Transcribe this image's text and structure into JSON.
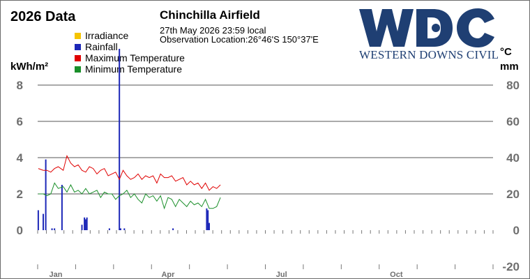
{
  "header": {
    "title": "2026 Data",
    "station": "Chinchilla Airfield",
    "timestamp": "27th May 2026  23:59 local",
    "location": "Observation Location:26°46'S 150°37'E"
  },
  "logo": {
    "letters": "WDC",
    "company": "WESTERN DOWNS CIVIL",
    "color": "#1f3f73"
  },
  "chart_data": {
    "type": "bar",
    "x_axis": {
      "ticks": [
        "Jan",
        "Apr",
        "Jul",
        "Oct"
      ],
      "range": [
        "2026-01-01",
        "2026-12-31"
      ]
    },
    "y_left": {
      "label": "kWh/m²",
      "ticks": [
        "0",
        "2",
        "4",
        "6",
        "8"
      ],
      "range": [
        0,
        8
      ]
    },
    "y_right": {
      "label_temp": "°C",
      "label_rain": "mm",
      "ticks": [
        "-20",
        "0",
        "20",
        "40",
        "60",
        "80"
      ],
      "range": [
        -20,
        80
      ]
    },
    "grid": true,
    "legend": [
      {
        "name": "Irradiance",
        "color": "#f5c400"
      },
      {
        "name": "Rainfall",
        "color": "#1c27b8"
      },
      {
        "name": "Maximum Temperature",
        "color": "#e00000"
      },
      {
        "name": "Minimum Temperature",
        "color": "#1a8f2a"
      }
    ],
    "rainfall": {
      "day": [
        1,
        5,
        7,
        12,
        14,
        20,
        36,
        38,
        39,
        40,
        58,
        66,
        67,
        70,
        109,
        136,
        137,
        138
      ],
      "mm": [
        11,
        9,
        39,
        1,
        1,
        25,
        3,
        7,
        6,
        7,
        1,
        100,
        1,
        1,
        1,
        12,
        11,
        4
      ]
    },
    "max_temp": {
      "day": [
        1,
        5,
        8,
        11,
        14,
        17,
        21,
        24,
        27,
        30,
        33,
        36,
        39,
        42,
        45,
        48,
        51,
        54,
        57,
        60,
        63,
        66,
        69,
        72,
        75,
        78,
        81,
        84,
        87,
        90,
        93,
        96,
        99,
        102,
        105,
        108,
        111,
        114,
        117,
        120,
        123,
        126,
        129,
        132,
        135,
        138,
        141,
        144,
        147
      ],
      "value": [
        34,
        33,
        33,
        32,
        34,
        35,
        33,
        41,
        37,
        35,
        36,
        33,
        32,
        35,
        34,
        31,
        33,
        34,
        30,
        31,
        32,
        28,
        33,
        30,
        28,
        29,
        31,
        28,
        30,
        29,
        30,
        26,
        31,
        29,
        29,
        30,
        27,
        28,
        29,
        25,
        27,
        25,
        26,
        23,
        26,
        22,
        24,
        23,
        25
      ]
    },
    "min_temp": {
      "day": [
        1,
        5,
        8,
        11,
        14,
        17,
        21,
        24,
        27,
        30,
        33,
        36,
        39,
        42,
        45,
        48,
        51,
        54,
        57,
        60,
        63,
        66,
        69,
        72,
        75,
        78,
        81,
        84,
        87,
        90,
        93,
        96,
        99,
        102,
        105,
        108,
        111,
        114,
        117,
        120,
        123,
        126,
        129,
        132,
        135,
        138,
        141,
        144,
        147
      ],
      "value": [
        20,
        20,
        19,
        20,
        26,
        23,
        24,
        21,
        25,
        21,
        22,
        20,
        23,
        20,
        21,
        22,
        18,
        21,
        20,
        20,
        17,
        19,
        20,
        22,
        18,
        20,
        17,
        15,
        20,
        18,
        19,
        16,
        19,
        12,
        18,
        17,
        13,
        17,
        15,
        13,
        16,
        14,
        15,
        13,
        17,
        12,
        12,
        13,
        18
      ]
    }
  }
}
